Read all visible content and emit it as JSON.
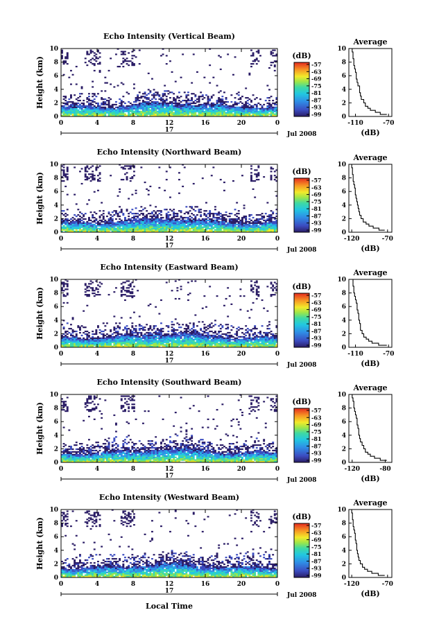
{
  "figure": {
    "xlabel": "Local Time",
    "date_label": "Jul 2008",
    "day_label": "17"
  },
  "colorbar": {
    "unit": "(dB)",
    "ticks": [
      "-57",
      "-63",
      "-69",
      "-75",
      "-81",
      "-87",
      "-93",
      "-99"
    ]
  },
  "chart_data": [
    {
      "type": "heatmap",
      "title": "Echo Intensity (Vertical Beam)",
      "ylabel": "Height (km)",
      "xlim": [
        0,
        24
      ],
      "ylim": [
        0,
        10
      ],
      "xticks": [
        "0",
        "4",
        "8",
        "12",
        "16",
        "20",
        "0"
      ],
      "yticks": [
        "0",
        "2",
        "4",
        "6",
        "8",
        "10"
      ],
      "profile": {
        "type": "line",
        "title": "Average",
        "xlabel": "(dB)",
        "xlim": [
          -118,
          -66
        ],
        "xticks": [
          "-110",
          "-70"
        ],
        "xtick_values": [
          -110,
          -70
        ],
        "ylim": [
          0,
          10
        ],
        "yticks": [
          "0",
          "2",
          "4",
          "6",
          "8",
          "10"
        ],
        "heights": [
          0.3,
          0.6,
          0.9,
          1.2,
          1.5,
          2.0,
          2.5,
          3.0,
          3.5,
          4.0,
          4.5,
          5.0,
          5.5,
          6.0,
          6.5,
          7.0,
          7.5,
          8.0,
          8.5,
          9.0,
          9.5,
          10.0
        ],
        "values": [
          -72,
          -80,
          -86,
          -92,
          -95,
          -98,
          -100,
          -103,
          -104,
          -105,
          -105,
          -107,
          -108,
          -109,
          -109,
          -110,
          -111,
          -112,
          -112,
          -113,
          -113,
          -114
        ]
      }
    },
    {
      "type": "heatmap",
      "title": "Echo Intensity (Northward Beam)",
      "ylabel": "Height (km)",
      "xlim": [
        0,
        24
      ],
      "ylim": [
        0,
        10
      ],
      "xticks": [
        "0",
        "4",
        "8",
        "12",
        "16",
        "20",
        "0"
      ],
      "yticks": [
        "0",
        "2",
        "4",
        "6",
        "8",
        "10"
      ],
      "profile": {
        "type": "line",
        "title": "Average",
        "xlabel": "(dB)",
        "xlim": [
          -124,
          -64
        ],
        "xticks": [
          "-120",
          "-70"
        ],
        "xtick_values": [
          -120,
          -70
        ],
        "ylim": [
          0,
          10
        ],
        "yticks": [
          "0",
          "2",
          "4",
          "6",
          "8",
          "10"
        ],
        "heights": [
          0.3,
          0.6,
          0.9,
          1.2,
          1.5,
          2.0,
          2.5,
          3.0,
          3.5,
          4.0,
          4.5,
          5.0,
          5.5,
          6.0,
          6.5,
          7.0,
          7.5,
          8.0,
          8.5,
          9.0,
          9.5,
          10.0
        ],
        "values": [
          -74,
          -82,
          -90,
          -96,
          -100,
          -104,
          -107,
          -109,
          -110,
          -111,
          -112,
          -113,
          -114,
          -115,
          -115,
          -116,
          -117,
          -118,
          -118,
          -119,
          -119,
          -120
        ]
      }
    },
    {
      "type": "heatmap",
      "title": "Echo Intensity (Eastward Beam)",
      "ylabel": "Height (km)",
      "xlim": [
        0,
        24
      ],
      "ylim": [
        0,
        10
      ],
      "xticks": [
        "0",
        "4",
        "8",
        "12",
        "16",
        "20",
        "0"
      ],
      "yticks": [
        "0",
        "2",
        "4",
        "6",
        "8",
        "10"
      ],
      "profile": {
        "type": "line",
        "title": "Average",
        "xlabel": "(dB)",
        "xlim": [
          -118,
          -66
        ],
        "xticks": [
          "-110",
          "-70"
        ],
        "xtick_values": [
          -110,
          -70
        ],
        "ylim": [
          0,
          10
        ],
        "yticks": [
          "0",
          "2",
          "4",
          "6",
          "8",
          "10"
        ],
        "heights": [
          0.3,
          0.6,
          0.9,
          1.2,
          1.5,
          2.0,
          2.5,
          3.0,
          3.5,
          4.0,
          4.5,
          5.0,
          5.5,
          6.0,
          6.5,
          7.0,
          7.5,
          8.0,
          8.5,
          9.0,
          9.5,
          10.0
        ],
        "values": [
          -72,
          -82,
          -90,
          -94,
          -97,
          -100,
          -102,
          -104,
          -104,
          -105,
          -106,
          -106,
          -107,
          -108,
          -108,
          -109,
          -110,
          -111,
          -112,
          -112,
          -113,
          -113
        ]
      }
    },
    {
      "type": "heatmap",
      "title": "Echo Intensity (Southward Beam)",
      "ylabel": "Height (km)",
      "xlim": [
        0,
        24
      ],
      "ylim": [
        0,
        10
      ],
      "xticks": [
        "0",
        "4",
        "8",
        "12",
        "16",
        "20",
        "0"
      ],
      "yticks": [
        "0",
        "2",
        "4",
        "6",
        "8",
        "10"
      ],
      "profile": {
        "type": "line",
        "title": "Average",
        "xlabel": "(dB)",
        "xlim": [
          -124,
          -72
        ],
        "xticks": [
          "-120",
          "-80"
        ],
        "xtick_values": [
          -120,
          -80
        ],
        "ylim": [
          0,
          10
        ],
        "yticks": [
          "0",
          "2",
          "4",
          "6",
          "8",
          "10"
        ],
        "heights": [
          0.3,
          0.6,
          0.9,
          1.2,
          1.5,
          2.0,
          2.5,
          3.0,
          3.5,
          4.0,
          4.5,
          5.0,
          5.5,
          6.0,
          6.5,
          7.0,
          7.5,
          8.0,
          8.5,
          9.0,
          9.5,
          10.0
        ],
        "values": [
          -78,
          -86,
          -93,
          -98,
          -101,
          -104,
          -106,
          -108,
          -110,
          -111,
          -112,
          -112,
          -113,
          -114,
          -114,
          -115,
          -116,
          -117,
          -118,
          -118,
          -119,
          -120
        ]
      }
    },
    {
      "type": "heatmap",
      "title": "Echo Intensity (Westward Beam)",
      "ylabel": "Height (km)",
      "xlim": [
        0,
        24
      ],
      "ylim": [
        0,
        10
      ],
      "xticks": [
        "0",
        "4",
        "8",
        "12",
        "16",
        "20",
        "0"
      ],
      "yticks": [
        "0",
        "2",
        "4",
        "6",
        "8",
        "10"
      ],
      "profile": {
        "type": "line",
        "title": "Average",
        "xlabel": "(dB)",
        "xlim": [
          -124,
          -64
        ],
        "xticks": [
          "-120",
          "-70"
        ],
        "xtick_values": [
          -120,
          -70
        ],
        "ylim": [
          0,
          10
        ],
        "yticks": [
          "0",
          "2",
          "4",
          "6",
          "8",
          "10"
        ],
        "heights": [
          0.3,
          0.6,
          0.9,
          1.2,
          1.5,
          2.0,
          2.5,
          3.0,
          3.5,
          4.0,
          4.5,
          5.0,
          5.5,
          6.0,
          6.5,
          7.0,
          7.5,
          8.0,
          8.5,
          9.0,
          9.5,
          10.0
        ],
        "values": [
          -74,
          -83,
          -92,
          -98,
          -102,
          -105,
          -108,
          -110,
          -111,
          -112,
          -113,
          -113,
          -114,
          -115,
          -115,
          -116,
          -117,
          -118,
          -118,
          -119,
          -119,
          -120
        ]
      }
    }
  ]
}
